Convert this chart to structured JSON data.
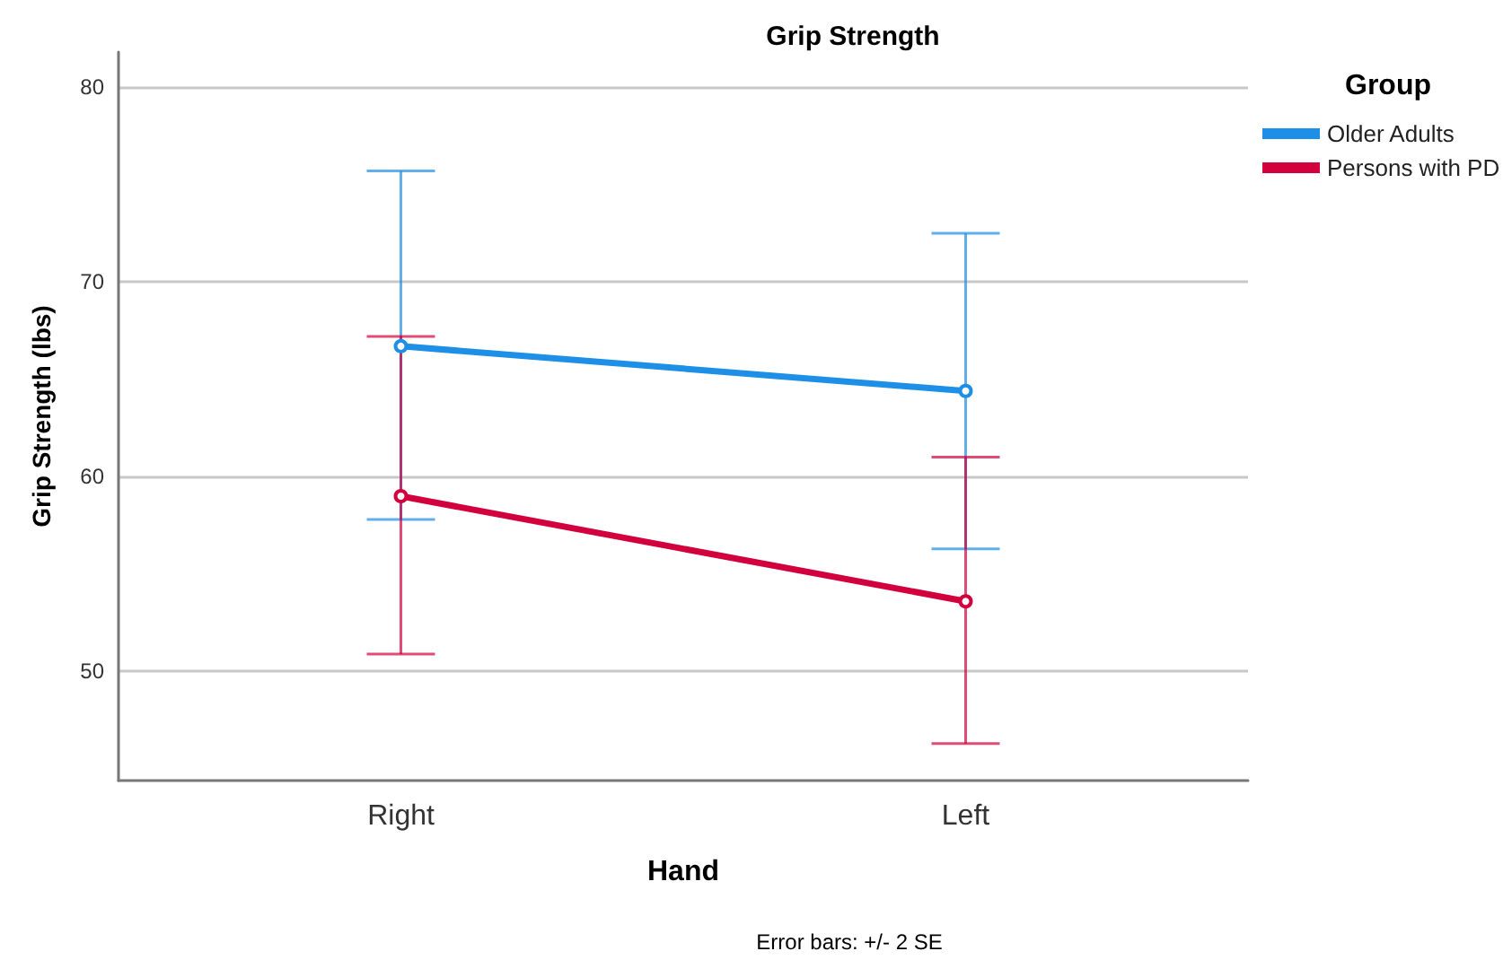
{
  "chart_data": {
    "type": "line",
    "title": "Grip Strength",
    "xlabel": "Hand",
    "ylabel": "Grip Strength (lbs)",
    "legend_title": "Group",
    "annotations": [
      "Error bars: +/- 2 SE"
    ],
    "categories": [
      "Right",
      "Left"
    ],
    "series": [
      {
        "name": "Older Adults",
        "color": "#1e8fe6",
        "values": [
          66.7,
          64.4
        ],
        "errors": [
          [
            57.8,
            75.7
          ],
          [
            56.3,
            72.5
          ]
        ]
      },
      {
        "name": "Persons with PD",
        "color": "#d2003c",
        "values": [
          59.0,
          53.6
        ],
        "errors": [
          [
            50.9,
            67.2
          ],
          [
            46.3,
            61.0
          ]
        ]
      }
    ],
    "ylim": [
      44.4,
      81.8
    ],
    "yticks": [
      50,
      60,
      70,
      80
    ],
    "grid": "y",
    "legend": "top right",
    "marker": "circle",
    "line_style": "solid"
  }
}
